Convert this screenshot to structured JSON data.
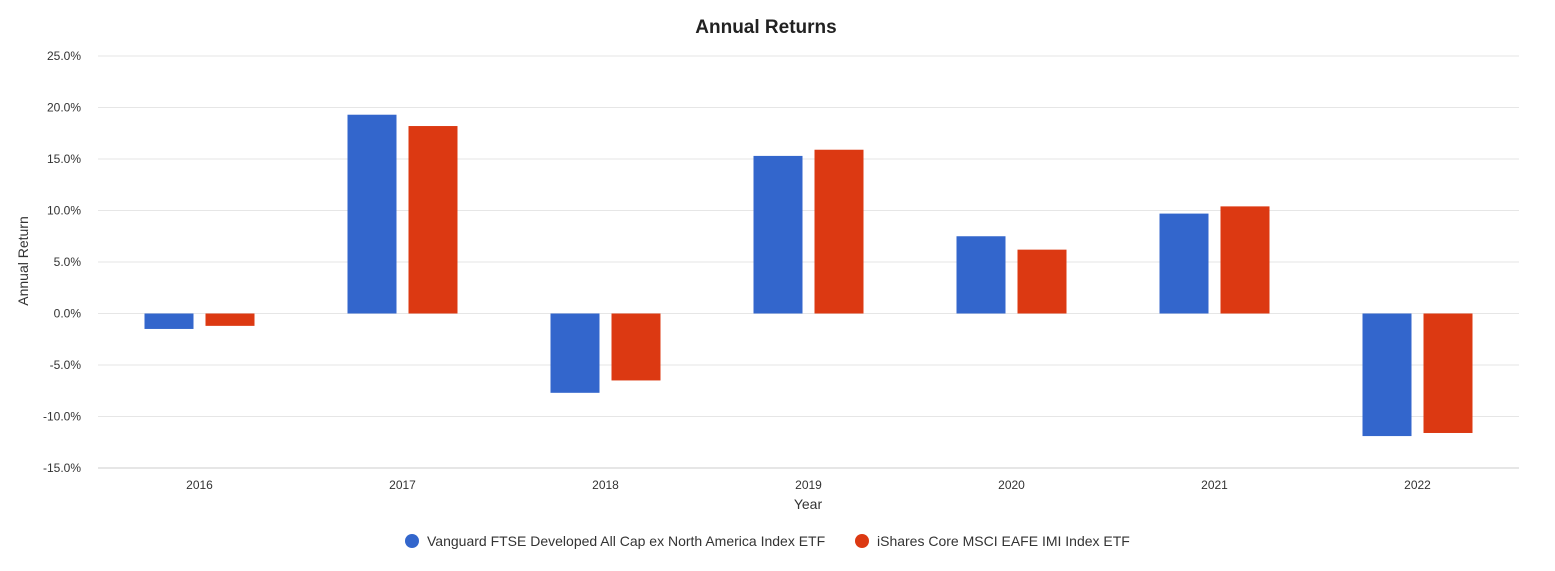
{
  "chart_data": {
    "type": "bar",
    "title": "Annual Returns",
    "xlabel": "Year",
    "ylabel": "Annual Return",
    "categories": [
      "2016",
      "2017",
      "2018",
      "2019",
      "2020",
      "2021",
      "2022"
    ],
    "series": [
      {
        "name": "Vanguard FTSE Developed All Cap ex North America Index ETF",
        "color": "#3366cc",
        "values": [
          -1.5,
          19.3,
          -7.7,
          15.3,
          7.5,
          9.7,
          -11.9
        ]
      },
      {
        "name": "iShares Core MSCI EAFE IMI Index ETF",
        "color": "#dc3912",
        "values": [
          -1.2,
          18.2,
          -6.5,
          15.9,
          6.2,
          10.4,
          -11.6
        ]
      }
    ],
    "ylim": [
      -15,
      25
    ],
    "yticks": [
      "25.0%",
      "20.0%",
      "15.0%",
      "10.0%",
      "5.0%",
      "0.0%",
      "-5.0%",
      "-10.0%",
      "-15.0%"
    ],
    "grid": true,
    "legend": "bottom"
  }
}
